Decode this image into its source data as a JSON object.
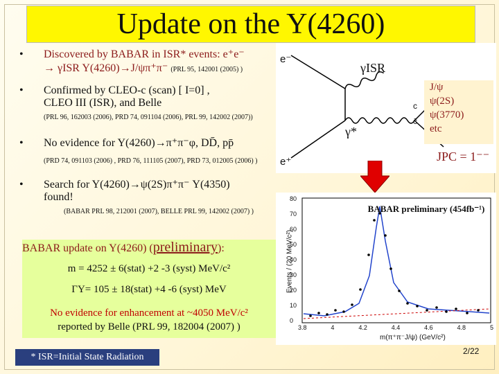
{
  "title": "Update on the Y(4260)",
  "bullets": [
    {
      "l1": "Discovered by BABAR in ISR* events: e⁺e⁻",
      "l2": "→ γISR Y(4260)→J/ψπ⁺π⁻",
      "ref": "(PRL 95, 142001 (2005) )"
    },
    {
      "l1": "Confirmed by CLEO-c (scan) [ I=0] ,",
      "l2": "CLEO III (ISR), and Belle",
      "ref": "(PRL 96, 162003 (2006), PRD 74, 091104 (2006), PRL 99, 142002 (2007))"
    },
    {
      "l1": "No evidence for Y(4260)→π⁺π⁻φ, DD̄, pp̄",
      "ref": "(PRD 74, 091103 (2006) , PRD 76, 111105 (2007), PRD 73, 012005 (2006) )"
    },
    {
      "l1": "Search for Y(4260)→ψ(2S)π⁺π⁻  Y(4350)",
      "l2": "found!",
      "ref": "(BABAR PRL 98, 212001 (2007), BELLE PRL 99, 142002 (2007) )"
    }
  ],
  "feynman": {
    "e_minus": "e⁻",
    "e_plus": "e⁺",
    "gamma_isr": "γISR",
    "gamma_star": "γ*",
    "c": "c",
    "cbar": "c̄",
    "states": [
      "J/ψ",
      "ψ(2S)",
      "ψ(3770)",
      "etc"
    ],
    "jpc": "JPC = 1⁻⁻"
  },
  "plot": {
    "legend": "BABAR preliminary (454fb⁻¹)",
    "ylabel": "Events / (20 MeV/c²)",
    "xlabel": "m(π⁺π⁻J/ψ) (GeV/c²)",
    "xticks": [
      "3.8",
      "4",
      "4.2",
      "4.4",
      "4.6",
      "4.8",
      "5"
    ],
    "yticks": [
      "0",
      "10",
      "20",
      "30",
      "40",
      "50",
      "60",
      "70",
      "80"
    ]
  },
  "box": {
    "heading_prefix": "BABAR update on Y(4260) (",
    "heading_prelim": "preliminary",
    "heading_suffix": "):",
    "mass": "m = 4252 ± 6(stat) +2 -3 (syst) MeV/c²",
    "width": "ΓY= 105 ± 18(stat) +4 -6 (syst) MeV",
    "noev1": "No evidence for enhancement at ~4050 MeV/c²",
    "noev2": "reported by Belle (PRL 99, 182004 (2007) )"
  },
  "isr_note": "* ISR=Initial State Radiation",
  "page_number": "2/22",
  "colors": {
    "title_bg": "#fff700",
    "box_bg": "#e6ff9c",
    "red": "#c00000",
    "isr_bg": "#2a3f7e"
  }
}
